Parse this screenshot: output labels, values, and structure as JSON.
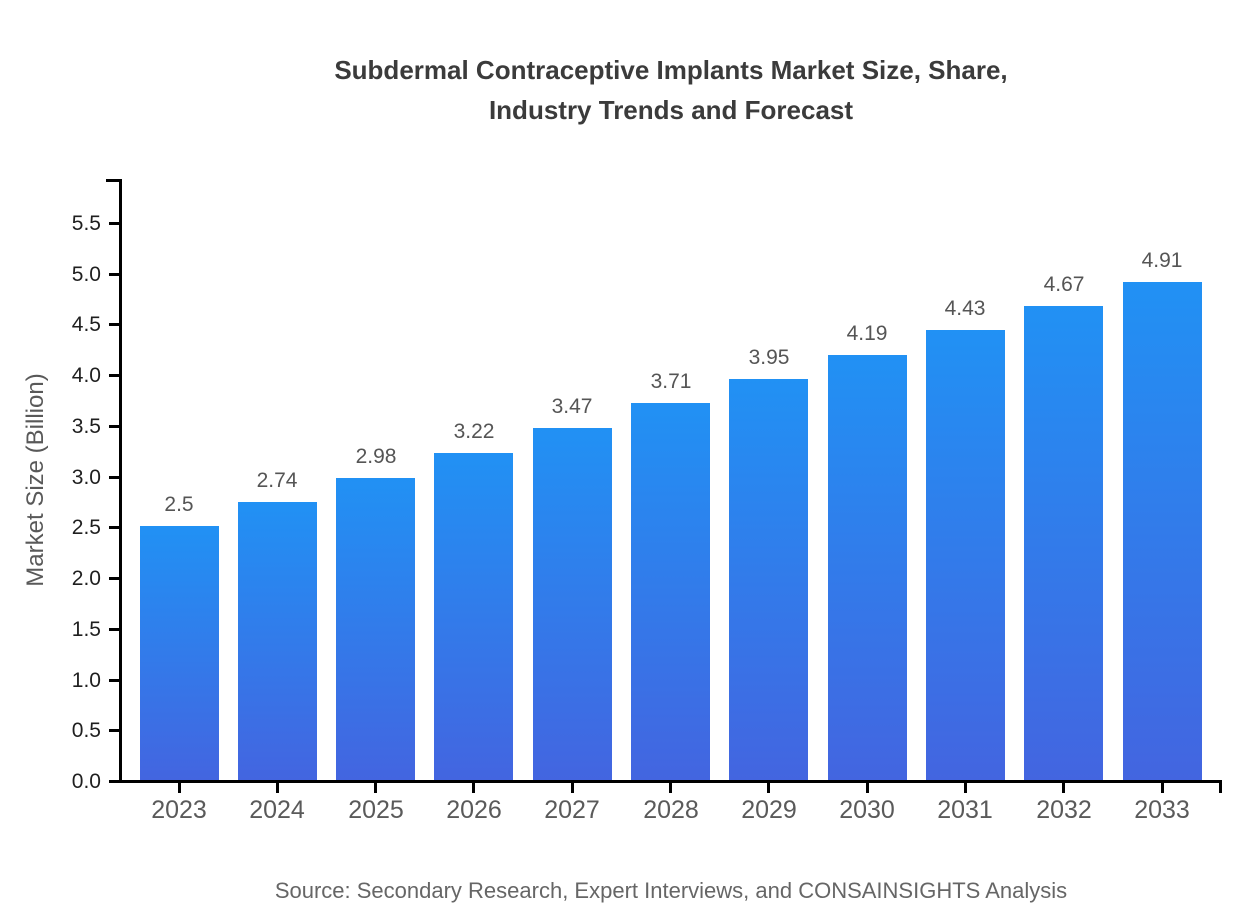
{
  "title_lines": [
    "Subdermal Contraceptive Implants Market Size, Share,",
    "Industry Trends and Forecast"
  ],
  "source": "Source: Secondary Research, Expert Interviews, and CONSAINSIGHTS Analysis",
  "chart_data": {
    "type": "bar",
    "title": "Subdermal Contraceptive Implants Market Size, Share, Industry Trends and Forecast",
    "xlabel": "",
    "ylabel": "Market Size (Billion)",
    "categories": [
      "2023",
      "2024",
      "2025",
      "2026",
      "2027",
      "2028",
      "2029",
      "2030",
      "2031",
      "2032",
      "2033"
    ],
    "values": [
      2.5,
      2.74,
      2.98,
      3.22,
      3.47,
      3.71,
      3.95,
      4.19,
      4.43,
      4.67,
      4.91
    ],
    "value_labels": [
      "2.5",
      "2.74",
      "2.98",
      "3.22",
      "3.47",
      "3.71",
      "3.95",
      "4.19",
      "4.43",
      "4.67",
      "4.91"
    ],
    "y_ticks": [
      0.0,
      0.5,
      1.0,
      1.5,
      2.0,
      2.5,
      3.0,
      3.5,
      4.0,
      4.5,
      5.0,
      5.5
    ],
    "y_tick_labels": [
      "0.0",
      "0.5",
      "1.0",
      "1.5",
      "2.0",
      "2.5",
      "3.0",
      "3.5",
      "4.0",
      "4.5",
      "5.0",
      "5.5"
    ],
    "ylim": [
      0,
      5.9
    ],
    "grid": false,
    "legend": "none",
    "colors": {
      "bar_gradient_top": "#2191F4",
      "bar_gradient_bottom": "#4365E0",
      "axis": "#000000",
      "title_text": "#3b3b3b",
      "y_tick_text": "#1f1f1f",
      "x_tick_text": "#5a5a5a",
      "value_label_text": "#555555",
      "source_text": "#666666"
    }
  }
}
